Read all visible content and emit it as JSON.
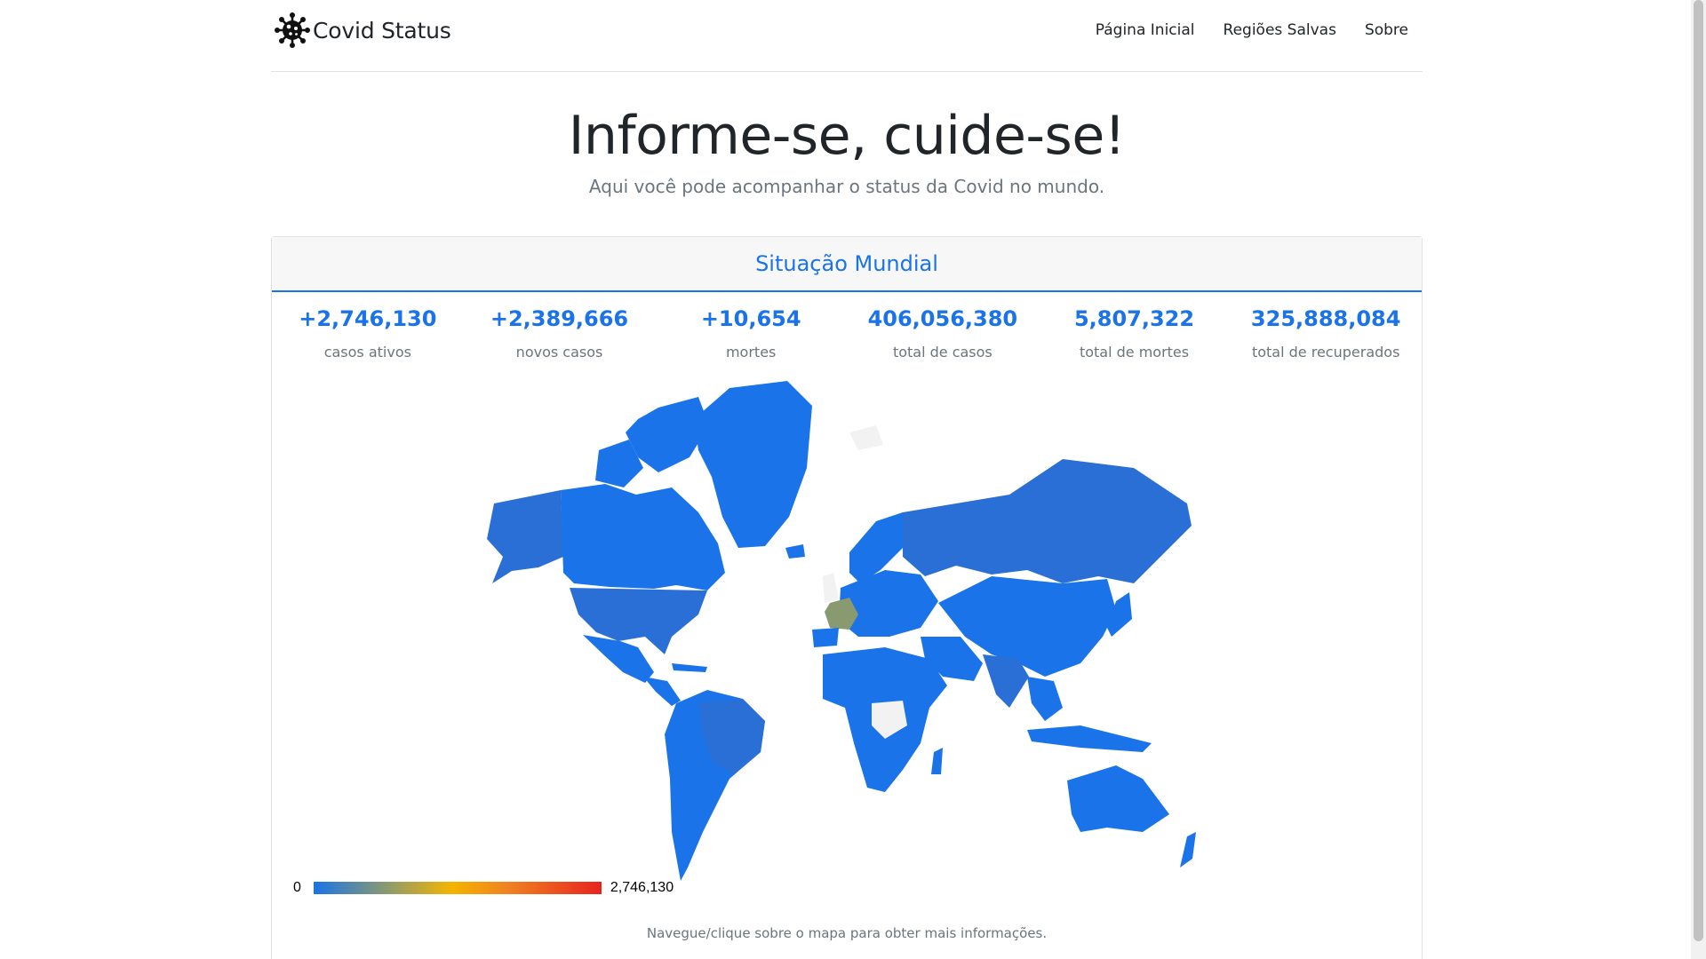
{
  "navbar": {
    "brand": "Covid Status",
    "links": [
      "Página Inicial",
      "Regiões Salvas",
      "Sobre"
    ]
  },
  "hero": {
    "title": "Informe-se, cuide-se!",
    "subtitle": "Aqui você pode acompanhar o status da Covid no mundo."
  },
  "card": {
    "title": "Situação Mundial",
    "stats": [
      {
        "value": "+2,746,130",
        "label": "casos ativos"
      },
      {
        "value": "+2,389,666",
        "label": "novos casos"
      },
      {
        "value": "+10,654",
        "label": "mortes"
      },
      {
        "value": "406,056,380",
        "label": "total de casos"
      },
      {
        "value": "5,807,322",
        "label": "total de mortes"
      },
      {
        "value": "325,888,084",
        "label": "total de recuperados"
      }
    ]
  },
  "map": {
    "legend_min": "0",
    "legend_max": "2,746,130",
    "hint": "Navegue/clique sobre o mapa para obter mais informações.",
    "colors": {
      "base": "#1a73e8",
      "mid": "#2a6fd6",
      "highlight": "#8a9a70",
      "no_data": "#f2f2f2"
    }
  }
}
